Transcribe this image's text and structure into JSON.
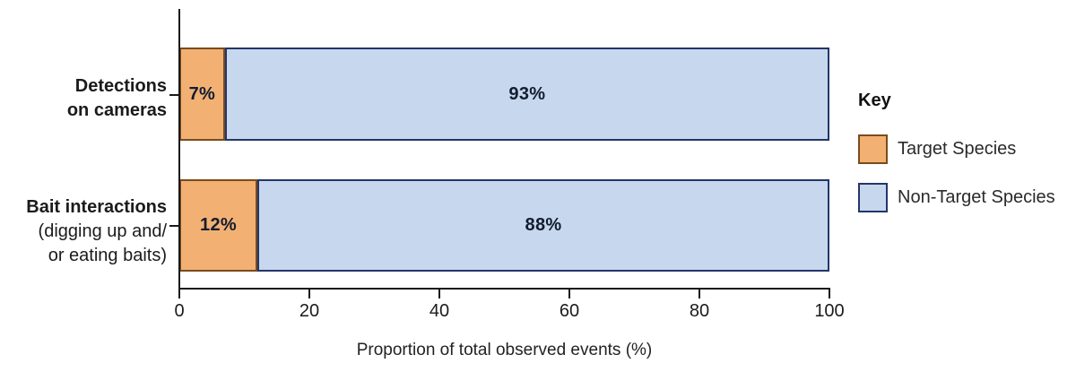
{
  "chart_data": {
    "type": "bar",
    "orientation": "horizontal",
    "stacked": true,
    "title": "",
    "xlabel": "Proportion of total observed events (%)",
    "ylabel": "",
    "xlim": [
      0,
      100
    ],
    "x_ticks": [
      0,
      20,
      40,
      60,
      80,
      100
    ],
    "grid": false,
    "legend_position": "right",
    "categories": [
      "Detections on cameras",
      "Bait interactions (digging up and/ or eating baits)"
    ],
    "row_labels": [
      {
        "bold_lines": [
          "Detections",
          "on cameras"
        ],
        "plain_lines": []
      },
      {
        "bold_lines": [
          "Bait interactions"
        ],
        "plain_lines": [
          "(digging up and/",
          "or eating baits)"
        ]
      }
    ],
    "series": [
      {
        "name": "Target Species",
        "values": [
          7,
          12
        ],
        "fill": "#f2b173",
        "border": "#7a4b1d"
      },
      {
        "name": "Non-Target Species",
        "values": [
          93,
          88
        ],
        "fill": "#c7d8ee",
        "border": "#24356b"
      }
    ],
    "value_labels": [
      [
        "7%",
        "93%"
      ],
      [
        "12%",
        "88%"
      ]
    ]
  },
  "legend": {
    "title": "Key",
    "items": [
      {
        "label": "Target Species"
      },
      {
        "label": "Non-Target Species"
      }
    ]
  },
  "colors": {
    "axis": "#1a1a1a",
    "text": "#1b1b1b",
    "value_label_text": "#131c30",
    "target_fill": "#f2b173",
    "target_border": "#7a4b1d",
    "nontarget_fill": "#c7d8ee",
    "nontarget_border": "#24356b"
  }
}
